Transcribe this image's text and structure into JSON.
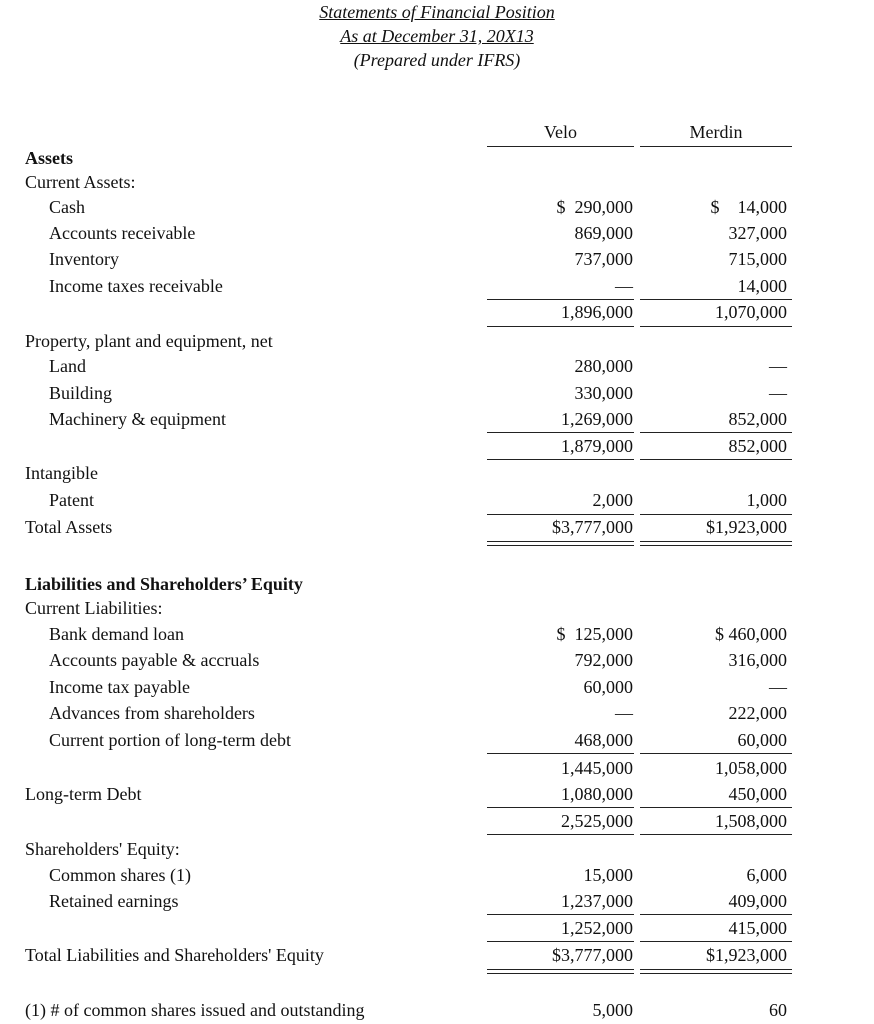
{
  "title": {
    "line1": "Statements of Financial Position",
    "line2": "As at December 31, 20X13",
    "line3": "(Prepared under IFRS)"
  },
  "columns": [
    "Velo",
    "Merdin"
  ],
  "rows": [
    {
      "label": "Assets",
      "bold": true,
      "indent": false
    },
    {
      "label": "Current Assets:",
      "indent": false
    },
    {
      "label": "Cash",
      "indent": true,
      "velo": "$  290,000",
      "merdin": "$    14,000"
    },
    {
      "label": "Accounts receivable",
      "indent": true,
      "velo": "869,000",
      "merdin": "327,000"
    },
    {
      "label": "Inventory",
      "indent": true,
      "velo": "737,000",
      "merdin": "715,000"
    },
    {
      "label": "Income taxes receivable",
      "indent": true,
      "velo": "—",
      "merdin": "14,000"
    },
    {
      "label": "",
      "velo": "1,896,000",
      "merdin": "1,070,000"
    },
    {
      "label": "Property, plant and equipment, net",
      "indent": false
    },
    {
      "label": "Land",
      "indent": true,
      "velo": "280,000",
      "merdin": "—"
    },
    {
      "label": "Building",
      "indent": true,
      "velo": "330,000",
      "merdin": "—"
    },
    {
      "label": "Machinery & equipment",
      "indent": true,
      "velo": "1,269,000",
      "merdin": "852,000"
    },
    {
      "label": "",
      "velo": "1,879,000",
      "merdin": "852,000"
    },
    {
      "label": "Intangible",
      "indent": false
    },
    {
      "label": "Patent",
      "indent": true,
      "velo": "2,000",
      "merdin": "1,000"
    },
    {
      "label": "Total Assets",
      "indent": false,
      "velo": "$3,777,000",
      "merdin": "$1,923,000"
    },
    {
      "label": "Liabilities and Shareholders’ Equity",
      "bold": true,
      "indent": false
    },
    {
      "label": "Current Liabilities:",
      "indent": false
    },
    {
      "label": "Bank demand loan",
      "indent": true,
      "velo": "$  125,000",
      "merdin": "$ 460,000"
    },
    {
      "label": "Accounts payable & accruals",
      "indent": true,
      "velo": "792,000",
      "merdin": "316,000"
    },
    {
      "label": "Income tax payable",
      "indent": true,
      "velo": "60,000",
      "merdin": "—"
    },
    {
      "label": "Advances from shareholders",
      "indent": true,
      "velo": "—",
      "merdin": "222,000"
    },
    {
      "label": "Current portion of long-term debt",
      "indent": true,
      "velo": "468,000",
      "merdin": "60,000"
    },
    {
      "label": "",
      "velo": "1,445,000",
      "merdin": "1,058,000"
    },
    {
      "label": "Long-term Debt",
      "indent": false,
      "velo": "1,080,000",
      "merdin": "450,000"
    },
    {
      "label": "",
      "velo": "2,525,000",
      "merdin": "1,508,000"
    },
    {
      "label": "Shareholders' Equity:",
      "indent": false
    },
    {
      "label": "Common shares  (1)",
      "indent": true,
      "velo": "15,000",
      "merdin": "6,000"
    },
    {
      "label": "Retained earnings",
      "indent": true,
      "velo": "1,237,000",
      "merdin": "409,000"
    },
    {
      "label": "",
      "velo": "1,252,000",
      "merdin": "415,000"
    },
    {
      "label": "Total Liabilities and Shareholders' Equity",
      "indent": false,
      "velo": "$3,777,000",
      "merdin": "$1,923,000"
    },
    {
      "label": "(1) # of common shares issued and outstanding",
      "indent": false,
      "velo": "5,000",
      "merdin": "60"
    }
  ]
}
